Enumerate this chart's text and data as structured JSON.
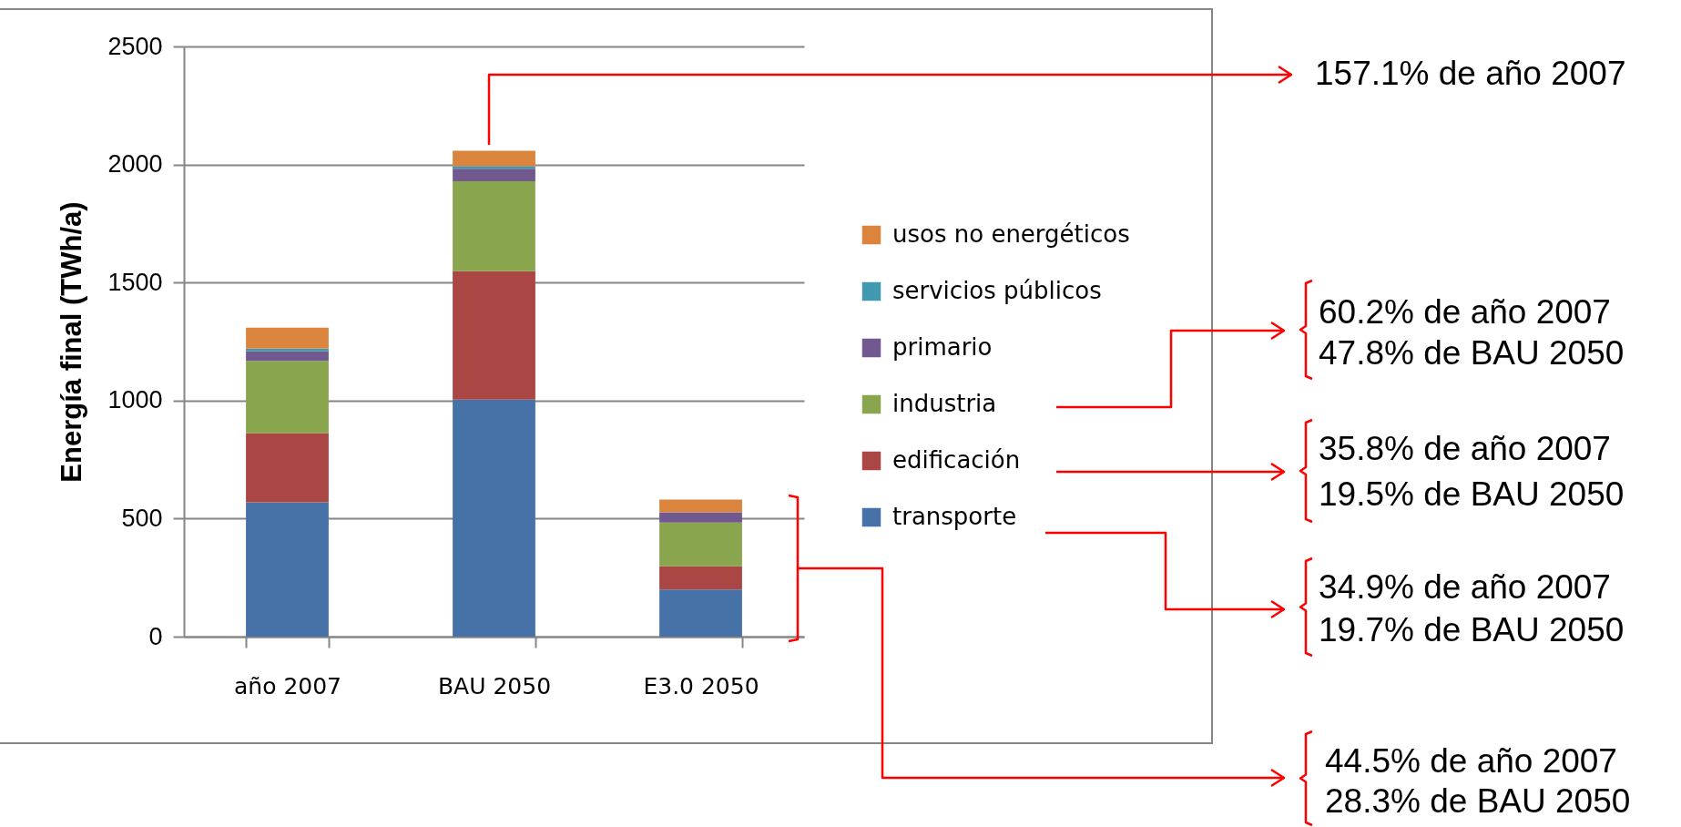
{
  "chart_data": {
    "type": "bar",
    "ylabel": "Energía final (TWh/a)",
    "categories": [
      "año 2007",
      "BAU 2050",
      "E3.0 2050"
    ],
    "series": [
      {
        "name": "transporte",
        "color": "#4672a8",
        "values": [
          569,
          1004,
          200
        ]
      },
      {
        "name": "edificación",
        "color": "#aa4644",
        "values": [
          293,
          544,
          98
        ]
      },
      {
        "name": "industria",
        "color": "#89a54e",
        "values": [
          306,
          381,
          185
        ]
      },
      {
        "name": "primario",
        "color": "#71588f",
        "values": [
          41,
          53,
          44
        ]
      },
      {
        "name": "servicios públicos",
        "color": "#4198af",
        "values": [
          11,
          11,
          0
        ]
      },
      {
        "name": "usos no energéticos",
        "color": "#db843d",
        "values": [
          89,
          65,
          54
        ]
      }
    ],
    "stacked": true,
    "ylim": [
      0,
      2500
    ],
    "yticks": [
      0,
      500,
      1000,
      1500,
      2000,
      2500
    ],
    "grid": "y",
    "legend": "right",
    "annotations": [
      "157.1% de año 2007",
      "60.2% de año 2007",
      "47.8% de BAU 2050",
      "35.8% de año 2007",
      "19.5% de BAU 2050",
      "34.9% de año 2007",
      "19.7% de BAU 2050",
      "44.5% de año 2007",
      "28.3% de BAU 2050"
    ]
  }
}
